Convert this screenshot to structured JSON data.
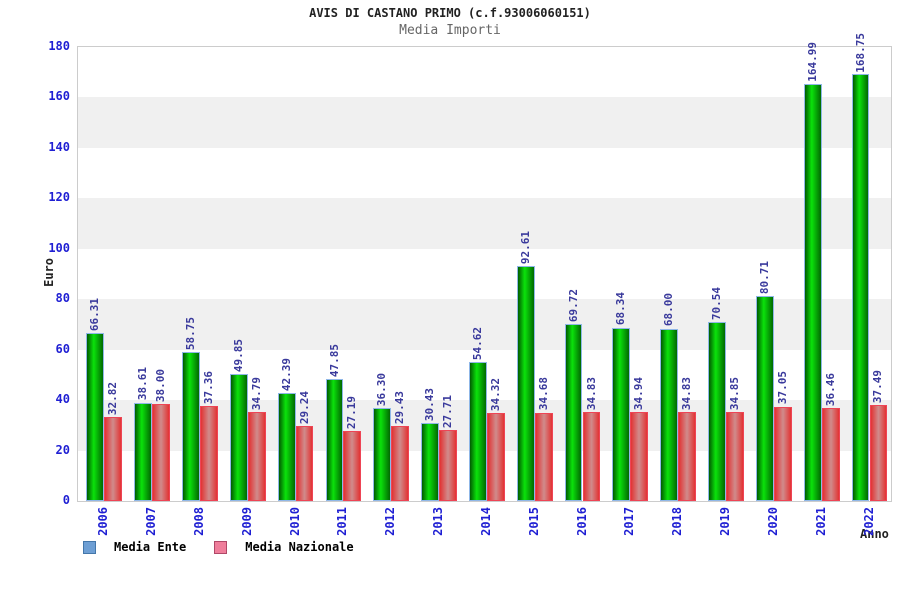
{
  "header": {
    "title": "AVIS DI CASTANO PRIMO (c.f.93006060151)",
    "subtitle": "Media Importi"
  },
  "chart_data": {
    "type": "bar",
    "title": "AVIS DI CASTANO PRIMO (c.f.93006060151)",
    "subtitle": "Media Importi",
    "ylabel": "Euro",
    "xlabel": "Anno",
    "ylim": [
      0,
      180
    ],
    "yticks": [
      0,
      20,
      40,
      60,
      80,
      100,
      120,
      140,
      160,
      180
    ],
    "grid_bands": true,
    "legend_position": "bottom-left",
    "categories": [
      "2006",
      "2007",
      "2008",
      "2009",
      "2010",
      "2011",
      "2012",
      "2013",
      "2014",
      "2015",
      "2016",
      "2017",
      "2018",
      "2019",
      "2020",
      "2021",
      "2022"
    ],
    "series": [
      {
        "name": "Media Ente",
        "values": [
          66.31,
          38.61,
          58.75,
          49.85,
          42.39,
          47.85,
          36.3,
          30.43,
          54.62,
          92.61,
          69.72,
          68.34,
          68.0,
          70.54,
          80.71,
          164.99,
          168.75
        ],
        "labels": [
          "66.31",
          "38.61",
          "58.75",
          "49.85",
          "42.39",
          "47.85",
          "36.30",
          "30.43",
          "54.62",
          "92.61",
          "69.72",
          "68.34",
          "68.00",
          "70.54",
          "80.71",
          "164.99",
          "168.75"
        ],
        "legend_color": "#6e9fd4",
        "bar_color_edge": "#015b01",
        "bar_color_center": "#0be20b",
        "bar_border": "#8fb7e8"
      },
      {
        "name": "Media Nazionale",
        "values": [
          32.82,
          38.0,
          37.36,
          34.79,
          29.24,
          27.19,
          29.43,
          27.71,
          34.32,
          34.68,
          34.83,
          34.94,
          34.83,
          34.85,
          37.05,
          36.46,
          37.49
        ],
        "labels": [
          "32.82",
          "38.00",
          "37.36",
          "34.79",
          "29.24",
          "27.19",
          "29.43",
          "27.71",
          "34.32",
          "34.68",
          "34.83",
          "34.94",
          "34.83",
          "34.85",
          "37.05",
          "36.46",
          "37.49"
        ],
        "legend_color": "#ef7e9b",
        "bar_color_edge": "#e23333",
        "bar_color_center": "#d08c8c",
        "bar_border": "#ee4455"
      }
    ],
    "value_label_color": "#3a3a9c",
    "axis_tick_color": "#1f1fd3",
    "band_color": "#f0f0f0"
  }
}
